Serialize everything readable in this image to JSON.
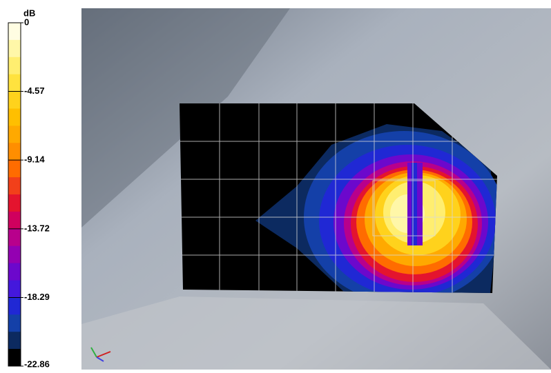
{
  "colorbar": {
    "unit": "dB",
    "ticks": [
      0,
      -4.57,
      -9.14,
      -13.72,
      -18.29,
      -22.86
    ],
    "colors": [
      "#fffde2",
      "#fff7a8",
      "#ffee70",
      "#ffe23e",
      "#ffd21c",
      "#ffbf00",
      "#ffa900",
      "#ff8e00",
      "#ff6c00",
      "#f2401a",
      "#e4142e",
      "#d0005e",
      "#b8008c",
      "#9400b2",
      "#6c08cc",
      "#4418dc",
      "#2028d4",
      "#1440a8",
      "#0c2a60",
      "#000000"
    ]
  }
}
